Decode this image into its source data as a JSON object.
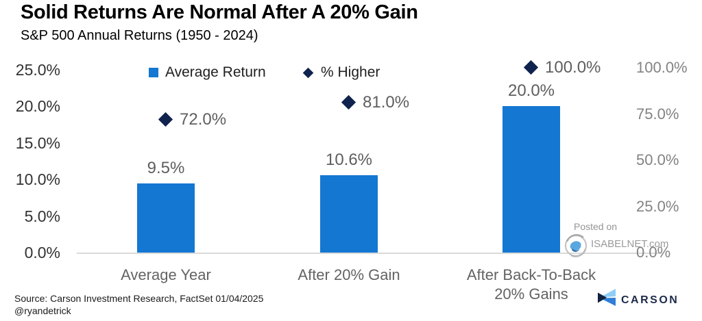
{
  "header": {
    "title": "Solid Returns Are Normal After A 20% Gain",
    "subtitle": "S&P 500 Annual Returns (1950 - 2024)"
  },
  "chart_data": {
    "type": "bar",
    "title": "Solid Returns Are Normal After A 20% Gain",
    "subtitle": "S&P 500 Annual Returns (1950 - 2024)",
    "categories": [
      "Average Year",
      "After 20% Gain",
      "After Back-To-Back\n20% Gains"
    ],
    "series": [
      {
        "name": "Average Return",
        "type": "bar",
        "axis": "left",
        "values": [
          9.5,
          10.6,
          20.0
        ],
        "labels": [
          "9.5%",
          "10.6%",
          "20.0%"
        ],
        "color": "#1477d2"
      },
      {
        "name": "% Higher",
        "type": "scatter",
        "marker": "diamond",
        "axis": "right",
        "values": [
          72.0,
          81.0,
          100.0
        ],
        "labels": [
          "72.0%",
          "81.0%",
          "100.0%"
        ],
        "color": "#10224e"
      }
    ],
    "left_axis": {
      "min": 0,
      "max": 25,
      "ticks": [
        {
          "label": "25.0%",
          "value": 25
        },
        {
          "label": "20.0%",
          "value": 20
        },
        {
          "label": "15.0%",
          "value": 15
        },
        {
          "label": "10.0%",
          "value": 10
        },
        {
          "label": "5.0%",
          "value": 5
        },
        {
          "label": "0.0%",
          "value": 0
        }
      ]
    },
    "right_axis": {
      "min": 0,
      "max": 100,
      "ticks": [
        {
          "label": "100.0%",
          "value": 100
        },
        {
          "label": "75.0%",
          "value": 75
        },
        {
          "label": "50.0%",
          "value": 50
        },
        {
          "label": "25.0%",
          "value": 25
        },
        {
          "label": "0.0%",
          "value": 0
        }
      ]
    },
    "grid": false,
    "legend_position": "top"
  },
  "watermark": {
    "posted_on": "Posted on",
    "site": "ISABELNET.com"
  },
  "footer": {
    "source": "Source: Carson Investment Research, FactSet 01/04/2025",
    "handle": "@ryandetrick",
    "brand": "CARSON"
  },
  "colors": {
    "bar_blue": "#1477d2",
    "diamond_navy": "#10224e",
    "baseline_gray": "#d9d9d9",
    "carson_navy": "#1c2b4a",
    "carson_light_blue": "#8ecdf6",
    "carson_mid_blue": "#2f7fd6"
  }
}
